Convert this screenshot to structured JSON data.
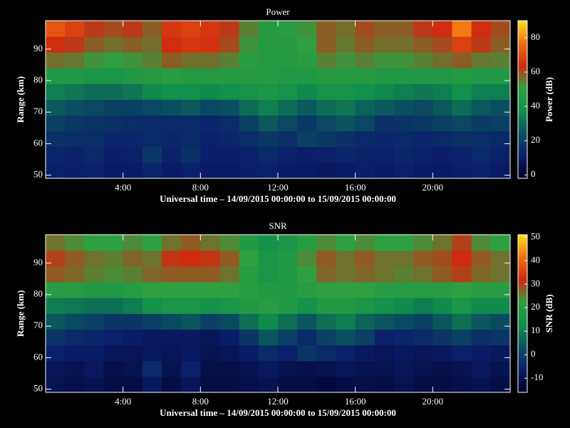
{
  "chart_data": [
    {
      "type": "heatmap",
      "title": "Power",
      "xlabel": "Universal time – 14/09/2015 00:00:00 to 15/09/2015 00:00:00",
      "ylabel": "Range (km)",
      "x": [
        0.5,
        1.5,
        2.5,
        3.5,
        4.5,
        5.5,
        6.5,
        7.5,
        8.5,
        9.5,
        10.5,
        11.5,
        12.5,
        13.5,
        14.5,
        15.5,
        16.5,
        17.5,
        18.5,
        19.5,
        20.5,
        21.5,
        22.5,
        23.5
      ],
      "y": [
        51.5,
        56.5,
        61.5,
        66.5,
        71.5,
        76.5,
        81.5,
        86.5,
        91.5,
        96.5
      ],
      "z": [
        [
          12,
          11,
          12,
          10,
          10,
          13,
          10,
          12,
          10,
          10,
          11,
          12,
          10,
          10,
          9,
          10,
          11,
          10,
          12,
          10,
          10,
          11,
          12,
          10
        ],
        [
          13,
          12,
          14,
          11,
          12,
          18,
          12,
          16,
          11,
          11,
          12,
          14,
          12,
          11,
          12,
          13,
          12,
          12,
          13,
          12,
          11,
          12,
          14,
          12
        ],
        [
          16,
          15,
          15,
          13,
          13,
          14,
          13,
          14,
          12,
          13,
          15,
          18,
          16,
          20,
          18,
          16,
          14,
          13,
          14,
          13,
          14,
          16,
          15,
          14
        ],
        [
          20,
          18,
          17,
          16,
          15,
          14,
          14,
          14,
          13,
          15,
          20,
          26,
          22,
          18,
          22,
          25,
          22,
          16,
          17,
          18,
          20,
          22,
          19,
          20
        ],
        [
          26,
          24,
          22,
          20,
          20,
          22,
          24,
          26,
          22,
          24,
          30,
          34,
          30,
          26,
          30,
          32,
          28,
          26,
          24,
          22,
          26,
          30,
          26,
          24
        ],
        [
          34,
          32,
          30,
          30,
          32,
          36,
          38,
          38,
          36,
          38,
          40,
          42,
          40,
          36,
          40,
          40,
          38,
          36,
          34,
          32,
          34,
          38,
          34,
          34
        ],
        [
          44,
          44,
          42,
          42,
          44,
          46,
          48,
          46,
          46,
          46,
          46,
          46,
          44,
          44,
          46,
          46,
          46,
          44,
          44,
          44,
          44,
          46,
          44,
          44
        ],
        [
          56,
          55,
          52,
          50,
          52,
          54,
          58,
          56,
          56,
          54,
          48,
          46,
          46,
          48,
          54,
          52,
          54,
          52,
          52,
          54,
          56,
          58,
          55,
          54
        ],
        [
          64,
          62,
          58,
          56,
          58,
          56,
          64,
          66,
          65,
          60,
          52,
          46,
          46,
          50,
          58,
          55,
          58,
          56,
          56,
          58,
          60,
          68,
          62,
          58
        ],
        [
          72,
          68,
          62,
          60,
          62,
          58,
          66,
          68,
          66,
          62,
          54,
          46,
          48,
          52,
          58,
          56,
          60,
          58,
          58,
          62,
          64,
          78,
          64,
          60
        ]
      ],
      "xlim": [
        0,
        24
      ],
      "xticks": [
        {
          "value": 4,
          "label": "4:00"
        },
        {
          "value": 8,
          "label": "8:00"
        },
        {
          "value": 12,
          "label": "12:00"
        },
        {
          "value": 16,
          "label": "16:00"
        },
        {
          "value": 20,
          "label": "20:00"
        }
      ],
      "ylim": [
        49,
        99
      ],
      "yticks": [
        50,
        60,
        70,
        80,
        90
      ],
      "colorbar_label": "Power (dB)",
      "zlim": [
        -2,
        90
      ],
      "zticks": [
        0,
        20,
        40,
        60,
        80
      ],
      "colorscale": [
        "#000028",
        "#0a1e6a",
        "#0a5060",
        "#10904a",
        "#30a040",
        "#d02a10",
        "#f07010",
        "#ffe020"
      ]
    },
    {
      "type": "heatmap",
      "title": "SNR",
      "xlabel": "Universal time – 14/09/2015 00:00:00 to 15/09/2015 00:00:00",
      "ylabel": "Range (km)",
      "x": [
        0.5,
        1.5,
        2.5,
        3.5,
        4.5,
        5.5,
        6.5,
        7.5,
        8.5,
        9.5,
        10.5,
        11.5,
        12.5,
        13.5,
        14.5,
        15.5,
        16.5,
        17.5,
        18.5,
        19.5,
        20.5,
        21.5,
        22.5,
        23.5
      ],
      "y": [
        51.5,
        56.5,
        61.5,
        66.5,
        71.5,
        76.5,
        81.5,
        86.5,
        91.5,
        96.5
      ],
      "z": [
        [
          -10,
          -11,
          -10,
          -12,
          -12,
          -8,
          -12,
          -9,
          -12,
          -12,
          -11,
          -10,
          -12,
          -12,
          -13,
          -12,
          -11,
          -12,
          -10,
          -12,
          -12,
          -11,
          -10,
          -12
        ],
        [
          -9,
          -10,
          -8,
          -11,
          -10,
          -4,
          -10,
          -6,
          -11,
          -11,
          -10,
          -8,
          -10,
          -11,
          -10,
          -9,
          -10,
          -10,
          -9,
          -10,
          -11,
          -10,
          -8,
          -10
        ],
        [
          -6,
          -7,
          -7,
          -9,
          -9,
          -8,
          -9,
          -8,
          -10,
          -9,
          -7,
          -4,
          -6,
          -2,
          -4,
          -6,
          -8,
          -9,
          -8,
          -9,
          -8,
          -6,
          -7,
          -8
        ],
        [
          -2,
          -4,
          -5,
          -6,
          -7,
          -8,
          -8,
          -8,
          -9,
          -7,
          -2,
          4,
          0,
          -4,
          0,
          3,
          0,
          -6,
          -5,
          -4,
          -2,
          0,
          -3,
          -2
        ],
        [
          4,
          2,
          0,
          -2,
          -2,
          0,
          2,
          4,
          0,
          2,
          8,
          12,
          8,
          4,
          8,
          10,
          6,
          4,
          2,
          0,
          4,
          8,
          4,
          2
        ],
        [
          10,
          9,
          8,
          8,
          10,
          14,
          16,
          16,
          14,
          16,
          18,
          20,
          18,
          14,
          18,
          18,
          16,
          14,
          12,
          10,
          12,
          16,
          12,
          12
        ],
        [
          20,
          20,
          18,
          18,
          20,
          22,
          22,
          22,
          22,
          22,
          20,
          18,
          18,
          20,
          22,
          22,
          22,
          20,
          20,
          20,
          20,
          22,
          20,
          20
        ],
        [
          28,
          27,
          25,
          24,
          25,
          27,
          28,
          28,
          28,
          26,
          20,
          16,
          18,
          22,
          27,
          26,
          27,
          26,
          25,
          26,
          28,
          30,
          27,
          26
        ],
        [
          30,
          28,
          26,
          25,
          27,
          26,
          31,
          32,
          31,
          28,
          22,
          16,
          18,
          24,
          28,
          26,
          28,
          26,
          26,
          28,
          29,
          32,
          28,
          26
        ],
        [
          26,
          24,
          22,
          22,
          24,
          22,
          26,
          28,
          26,
          24,
          18,
          14,
          16,
          20,
          24,
          22,
          24,
          22,
          22,
          24,
          26,
          30,
          24,
          22
        ]
      ],
      "xlim": [
        0,
        24
      ],
      "xticks": [
        {
          "value": 4,
          "label": "4:00"
        },
        {
          "value": 8,
          "label": "8:00"
        },
        {
          "value": 12,
          "label": "12:00"
        },
        {
          "value": 16,
          "label": "16:00"
        },
        {
          "value": 20,
          "label": "20:00"
        }
      ],
      "ylim": [
        49,
        99
      ],
      "yticks": [
        50,
        60,
        70,
        80,
        90
      ],
      "colorbar_label": "SNR (dB)",
      "zlim": [
        -16,
        51
      ],
      "zticks": [
        -10,
        0,
        10,
        20,
        30,
        40,
        50
      ],
      "colorscale": [
        "#000028",
        "#0a1e6a",
        "#0a5060",
        "#10904a",
        "#30a040",
        "#d02a10",
        "#f07010",
        "#ffe020"
      ]
    }
  ]
}
